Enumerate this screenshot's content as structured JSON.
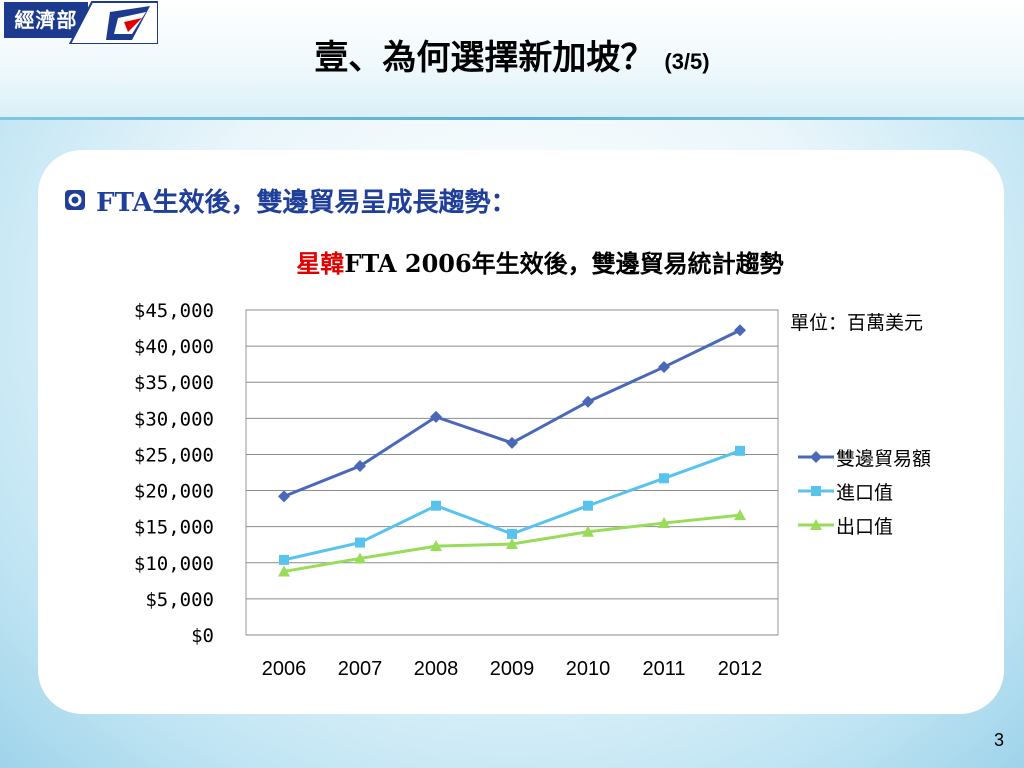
{
  "logo": {
    "text": "經濟部"
  },
  "header": {
    "title": "壹、為何選擇新加坡？",
    "subtitle": "(3/5)"
  },
  "bullet": {
    "text": "FTA生效後，雙邊貿易呈成長趨勢："
  },
  "chart_title": {
    "highlight": "星韓",
    "rest": "FTA 2006年生效後，雙邊貿易統計趨勢"
  },
  "unit_label": "單位：百萬美元",
  "page_number": "3",
  "colors": {
    "series_total": "#4a68b8",
    "series_import": "#58c3ec",
    "series_export": "#98dc5a",
    "accent_red": "#e00000",
    "bullet_blue": "#1f3f9a",
    "logo_blue": "#1d3b8e"
  },
  "chart_data": {
    "type": "line",
    "title": "星韓FTA 2006年生效後，雙邊貿易統計趨勢",
    "categories": [
      "2006",
      "2007",
      "2008",
      "2009",
      "2010",
      "2011",
      "2012"
    ],
    "y_ticks": [
      "$0",
      "$5,000",
      "$10,000",
      "$15,000",
      "$20,000",
      "$25,000",
      "$30,000",
      "$35,000",
      "$40,000",
      "$45,000"
    ],
    "ylim": [
      0,
      45000
    ],
    "grid": true,
    "legend_position": "right",
    "series": [
      {
        "name": "雙邊貿易額",
        "marker": "diamond",
        "values": [
          19200,
          23400,
          30200,
          26600,
          32300,
          37100,
          42200
        ]
      },
      {
        "name": "進口值",
        "marker": "square",
        "values": [
          10400,
          12800,
          17900,
          14000,
          17900,
          21700,
          25500
        ]
      },
      {
        "name": "出口值",
        "marker": "triangle",
        "values": [
          8800,
          10600,
          12300,
          12600,
          14300,
          15500,
          16600
        ]
      }
    ]
  }
}
